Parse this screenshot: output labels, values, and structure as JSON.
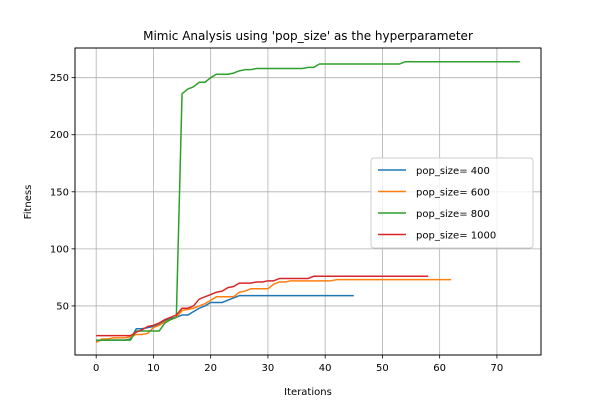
{
  "chart_data": {
    "type": "line",
    "title": "Mimic Analysis using 'pop_size' as the hyperparameter",
    "xlabel": "Iterations",
    "ylabel": "Fitness",
    "xlim": [
      -3.7,
      77.7
    ],
    "ylim": [
      7,
      276
    ],
    "xticks": [
      0,
      10,
      20,
      30,
      40,
      50,
      60,
      70
    ],
    "yticks": [
      50,
      100,
      150,
      200,
      250
    ],
    "grid": true,
    "legend_position": "center-right",
    "series": [
      {
        "name": "pop_size= 400",
        "color": "#1f77b4",
        "points": [
          [
            0,
            19
          ],
          [
            1,
            20
          ],
          [
            2,
            20
          ],
          [
            3,
            20
          ],
          [
            4,
            20
          ],
          [
            5,
            20
          ],
          [
            6,
            21
          ],
          [
            7,
            30
          ],
          [
            8,
            30
          ],
          [
            9,
            31
          ],
          [
            10,
            32
          ],
          [
            11,
            34
          ],
          [
            12,
            37
          ],
          [
            13,
            39
          ],
          [
            14,
            40
          ],
          [
            15,
            42
          ],
          [
            16,
            42
          ],
          [
            17,
            45
          ],
          [
            18,
            48
          ],
          [
            19,
            50
          ],
          [
            20,
            53
          ],
          [
            21,
            53
          ],
          [
            22,
            53
          ],
          [
            23,
            55
          ],
          [
            24,
            57
          ],
          [
            25,
            59
          ],
          [
            26,
            59
          ],
          [
            27,
            59
          ],
          [
            28,
            59
          ],
          [
            29,
            59
          ],
          [
            30,
            59
          ],
          [
            31,
            59
          ],
          [
            32,
            59
          ],
          [
            33,
            59
          ],
          [
            34,
            59
          ],
          [
            35,
            59
          ],
          [
            36,
            59
          ],
          [
            37,
            59
          ],
          [
            38,
            59
          ],
          [
            39,
            59
          ],
          [
            40,
            59
          ],
          [
            41,
            59
          ],
          [
            42,
            59
          ],
          [
            43,
            59
          ],
          [
            44,
            59
          ],
          [
            45,
            59
          ]
        ]
      },
      {
        "name": "pop_size= 600",
        "color": "#ff7f0e",
        "points": [
          [
            0,
            18
          ],
          [
            1,
            21
          ],
          [
            2,
            21
          ],
          [
            3,
            22
          ],
          [
            4,
            22
          ],
          [
            5,
            22
          ],
          [
            6,
            23
          ],
          [
            7,
            25
          ],
          [
            8,
            25
          ],
          [
            9,
            26
          ],
          [
            10,
            31
          ],
          [
            11,
            33
          ],
          [
            12,
            36
          ],
          [
            13,
            38
          ],
          [
            14,
            40
          ],
          [
            15,
            46
          ],
          [
            16,
            47
          ],
          [
            17,
            48
          ],
          [
            18,
            50
          ],
          [
            19,
            52
          ],
          [
            20,
            55
          ],
          [
            21,
            58
          ],
          [
            22,
            58
          ],
          [
            23,
            58
          ],
          [
            24,
            58
          ],
          [
            25,
            62
          ],
          [
            26,
            63
          ],
          [
            27,
            65
          ],
          [
            28,
            65
          ],
          [
            29,
            65
          ],
          [
            30,
            65
          ],
          [
            31,
            69
          ],
          [
            32,
            71
          ],
          [
            33,
            71
          ],
          [
            34,
            72
          ],
          [
            35,
            72
          ],
          [
            36,
            72
          ],
          [
            37,
            72
          ],
          [
            38,
            72
          ],
          [
            39,
            72
          ],
          [
            40,
            72
          ],
          [
            41,
            72
          ],
          [
            42,
            73
          ],
          [
            43,
            73
          ],
          [
            44,
            73
          ],
          [
            45,
            73
          ],
          [
            46,
            73
          ],
          [
            47,
            73
          ],
          [
            48,
            73
          ],
          [
            49,
            73
          ],
          [
            50,
            73
          ],
          [
            51,
            73
          ],
          [
            52,
            73
          ],
          [
            53,
            73
          ],
          [
            54,
            73
          ],
          [
            55,
            73
          ],
          [
            56,
            73
          ],
          [
            57,
            73
          ],
          [
            58,
            73
          ],
          [
            59,
            73
          ],
          [
            60,
            73
          ],
          [
            61,
            73
          ],
          [
            62,
            73
          ]
        ]
      },
      {
        "name": "pop_size= 800",
        "color": "#2ca02c",
        "points": [
          [
            0,
            20
          ],
          [
            1,
            20
          ],
          [
            2,
            20
          ],
          [
            3,
            20
          ],
          [
            4,
            20
          ],
          [
            5,
            20
          ],
          [
            6,
            20
          ],
          [
            7,
            28
          ],
          [
            8,
            28
          ],
          [
            9,
            28
          ],
          [
            10,
            28
          ],
          [
            11,
            28
          ],
          [
            12,
            35
          ],
          [
            13,
            38
          ],
          [
            14,
            40
          ],
          [
            15,
            236
          ],
          [
            16,
            240
          ],
          [
            17,
            242
          ],
          [
            18,
            246
          ],
          [
            19,
            246
          ],
          [
            20,
            250
          ],
          [
            21,
            253
          ],
          [
            22,
            253
          ],
          [
            23,
            253
          ],
          [
            24,
            254
          ],
          [
            25,
            256
          ],
          [
            26,
            257
          ],
          [
            27,
            257
          ],
          [
            28,
            258
          ],
          [
            29,
            258
          ],
          [
            30,
            258
          ],
          [
            31,
            258
          ],
          [
            32,
            258
          ],
          [
            33,
            258
          ],
          [
            34,
            258
          ],
          [
            35,
            258
          ],
          [
            36,
            258
          ],
          [
            37,
            259
          ],
          [
            38,
            259
          ],
          [
            39,
            262
          ],
          [
            40,
            262
          ],
          [
            41,
            262
          ],
          [
            42,
            262
          ],
          [
            43,
            262
          ],
          [
            44,
            262
          ],
          [
            45,
            262
          ],
          [
            46,
            262
          ],
          [
            47,
            262
          ],
          [
            48,
            262
          ],
          [
            49,
            262
          ],
          [
            50,
            262
          ],
          [
            51,
            262
          ],
          [
            52,
            262
          ],
          [
            53,
            262
          ],
          [
            54,
            264
          ],
          [
            55,
            264
          ],
          [
            56,
            264
          ],
          [
            57,
            264
          ],
          [
            58,
            264
          ],
          [
            59,
            264
          ],
          [
            60,
            264
          ],
          [
            61,
            264
          ],
          [
            62,
            264
          ],
          [
            63,
            264
          ],
          [
            64,
            264
          ],
          [
            65,
            264
          ],
          [
            66,
            264
          ],
          [
            67,
            264
          ],
          [
            68,
            264
          ],
          [
            69,
            264
          ],
          [
            70,
            264
          ],
          [
            71,
            264
          ],
          [
            72,
            264
          ],
          [
            73,
            264
          ],
          [
            74,
            264
          ]
        ]
      },
      {
        "name": "pop_size= 1000",
        "color": "#d62728",
        "points": [
          [
            0,
            24
          ],
          [
            1,
            24
          ],
          [
            2,
            24
          ],
          [
            3,
            24
          ],
          [
            4,
            24
          ],
          [
            5,
            24
          ],
          [
            6,
            24
          ],
          [
            7,
            27
          ],
          [
            8,
            29
          ],
          [
            9,
            32
          ],
          [
            10,
            33
          ],
          [
            11,
            35
          ],
          [
            12,
            38
          ],
          [
            13,
            40
          ],
          [
            14,
            42
          ],
          [
            15,
            48
          ],
          [
            16,
            48
          ],
          [
            17,
            50
          ],
          [
            18,
            56
          ],
          [
            19,
            58
          ],
          [
            20,
            60
          ],
          [
            21,
            62
          ],
          [
            22,
            63
          ],
          [
            23,
            66
          ],
          [
            24,
            67
          ],
          [
            25,
            70
          ],
          [
            26,
            70
          ],
          [
            27,
            70
          ],
          [
            28,
            71
          ],
          [
            29,
            71
          ],
          [
            30,
            72
          ],
          [
            31,
            72
          ],
          [
            32,
            74
          ],
          [
            33,
            74
          ],
          [
            34,
            74
          ],
          [
            35,
            74
          ],
          [
            36,
            74
          ],
          [
            37,
            74
          ],
          [
            38,
            76
          ],
          [
            39,
            76
          ],
          [
            40,
            76
          ],
          [
            41,
            76
          ],
          [
            42,
            76
          ],
          [
            43,
            76
          ],
          [
            44,
            76
          ],
          [
            45,
            76
          ],
          [
            46,
            76
          ],
          [
            47,
            76
          ],
          [
            48,
            76
          ],
          [
            49,
            76
          ],
          [
            50,
            76
          ],
          [
            51,
            76
          ],
          [
            52,
            76
          ],
          [
            53,
            76
          ],
          [
            54,
            76
          ],
          [
            55,
            76
          ],
          [
            56,
            76
          ],
          [
            57,
            76
          ],
          [
            58,
            76
          ]
        ]
      }
    ]
  }
}
